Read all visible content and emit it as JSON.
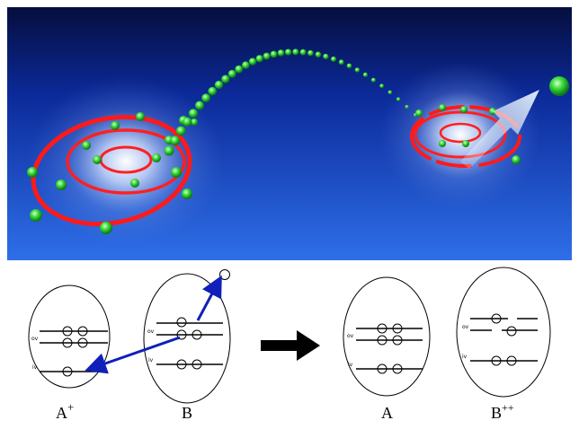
{
  "illustration": {
    "background_colors": [
      "#071450",
      "#1a4fd0",
      "#3a7cf0"
    ],
    "orbit_color": "#ff1a1a",
    "electron_color": "#39e639",
    "arrow_color": "#cfe8f5"
  },
  "schematic": {
    "arrow_color": "#1020b8",
    "big_arrow_color": "#000000",
    "level_labels": {
      "outer": "ov",
      "inner": "iv"
    },
    "before": {
      "left_atom_label": "A",
      "left_atom_charge": "+",
      "right_atom_label": "B"
    },
    "after": {
      "left_atom_label": "A",
      "right_atom_label": "B",
      "right_atom_charge": "++"
    }
  }
}
